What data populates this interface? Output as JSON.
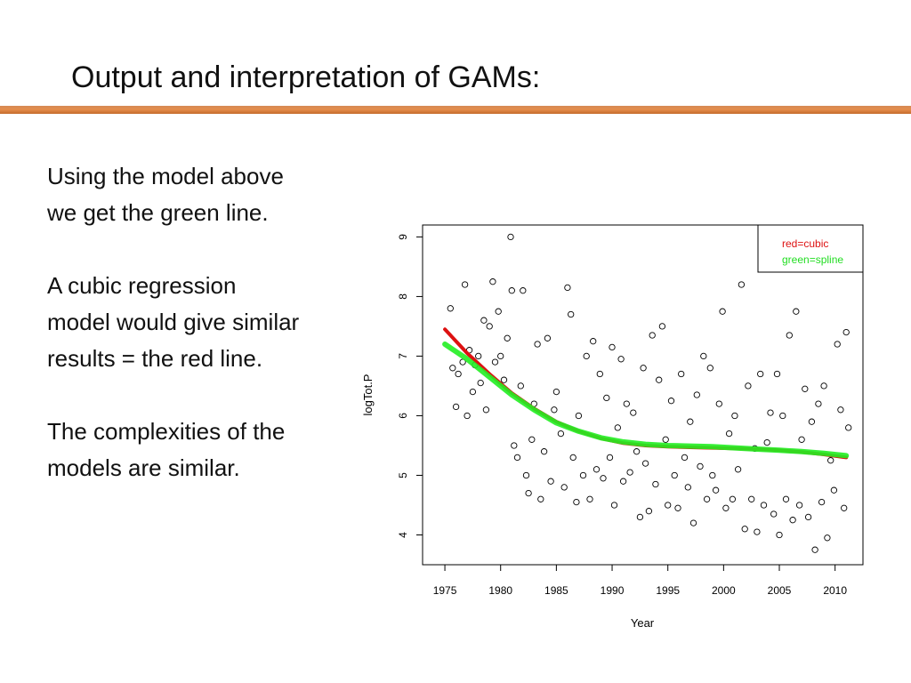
{
  "slide": {
    "title": "Output and interpretation of GAMs:",
    "paragraphs": [
      "Using the model above we get the green line.",
      "A cubic regression model would give similar results = the red line.",
      "The complexities of the models are similar."
    ]
  },
  "colors": {
    "accent_rule": "#e58d4c",
    "cubic": "#dd1111",
    "spline": "#22ee22"
  },
  "chart_data": {
    "type": "scatter",
    "xlabel": "Year",
    "ylabel": "logTot.P",
    "xlim": [
      1973,
      2012.5
    ],
    "ylim": [
      3.5,
      9.2
    ],
    "xticks": [
      1975,
      1980,
      1985,
      1990,
      1995,
      2000,
      2005,
      2010
    ],
    "yticks": [
      4,
      5,
      6,
      7,
      8,
      9
    ],
    "grid": false,
    "legend": {
      "position": "top-right",
      "entries": [
        {
          "label": "red=cubic",
          "color": "#dd1111"
        },
        {
          "label": "green=spline",
          "color": "#22ee22"
        }
      ]
    },
    "points": [
      [
        1975.5,
        7.8
      ],
      [
        1975.7,
        6.8
      ],
      [
        1976.0,
        6.15
      ],
      [
        1976.2,
        6.7
      ],
      [
        1976.6,
        6.9
      ],
      [
        1976.8,
        8.2
      ],
      [
        1977.0,
        6.0
      ],
      [
        1977.2,
        7.1
      ],
      [
        1977.5,
        6.4
      ],
      [
        1977.7,
        6.85
      ],
      [
        1978.0,
        7.0
      ],
      [
        1978.2,
        6.55
      ],
      [
        1978.5,
        7.6
      ],
      [
        1978.7,
        6.1
      ],
      [
        1979.0,
        7.5
      ],
      [
        1979.3,
        8.25
      ],
      [
        1979.5,
        6.9
      ],
      [
        1979.8,
        7.75
      ],
      [
        1980.0,
        7.0
      ],
      [
        1980.3,
        6.6
      ],
      [
        1980.6,
        7.3
      ],
      [
        1980.9,
        9.0
      ],
      [
        1981.0,
        8.1
      ],
      [
        1981.2,
        5.5
      ],
      [
        1981.5,
        5.3
      ],
      [
        1981.8,
        6.5
      ],
      [
        1982.0,
        8.1
      ],
      [
        1982.3,
        5.0
      ],
      [
        1982.5,
        4.7
      ],
      [
        1982.8,
        5.6
      ],
      [
        1983.0,
        6.2
      ],
      [
        1983.3,
        7.2
      ],
      [
        1983.6,
        4.6
      ],
      [
        1983.9,
        5.4
      ],
      [
        1984.2,
        7.3
      ],
      [
        1984.5,
        4.9
      ],
      [
        1984.8,
        6.1
      ],
      [
        1985.0,
        6.4
      ],
      [
        1985.4,
        5.7
      ],
      [
        1985.7,
        4.8
      ],
      [
        1986.0,
        8.15
      ],
      [
        1986.3,
        7.7
      ],
      [
        1986.5,
        5.3
      ],
      [
        1986.8,
        4.55
      ],
      [
        1987.0,
        6.0
      ],
      [
        1987.4,
        5.0
      ],
      [
        1987.7,
        7.0
      ],
      [
        1988.0,
        4.6
      ],
      [
        1988.3,
        7.25
      ],
      [
        1988.6,
        5.1
      ],
      [
        1988.9,
        6.7
      ],
      [
        1989.2,
        4.95
      ],
      [
        1989.5,
        6.3
      ],
      [
        1989.8,
        5.3
      ],
      [
        1990.0,
        7.15
      ],
      [
        1990.2,
        4.5
      ],
      [
        1990.5,
        5.8
      ],
      [
        1990.8,
        6.95
      ],
      [
        1991.0,
        4.9
      ],
      [
        1991.3,
        6.2
      ],
      [
        1991.6,
        5.05
      ],
      [
        1991.9,
        6.05
      ],
      [
        1992.2,
        5.4
      ],
      [
        1992.5,
        4.3
      ],
      [
        1992.8,
        6.8
      ],
      [
        1993.0,
        5.2
      ],
      [
        1993.3,
        4.4
      ],
      [
        1993.6,
        7.35
      ],
      [
        1993.9,
        4.85
      ],
      [
        1994.2,
        6.6
      ],
      [
        1994.5,
        7.5
      ],
      [
        1994.8,
        5.6
      ],
      [
        1995.0,
        4.5
      ],
      [
        1995.3,
        6.25
      ],
      [
        1995.6,
        5.0
      ],
      [
        1995.9,
        4.45
      ],
      [
        1996.2,
        6.7
      ],
      [
        1996.5,
        5.3
      ],
      [
        1996.8,
        4.8
      ],
      [
        1997.0,
        5.9
      ],
      [
        1997.3,
        4.2
      ],
      [
        1997.6,
        6.35
      ],
      [
        1997.9,
        5.15
      ],
      [
        1998.2,
        7.0
      ],
      [
        1998.5,
        4.6
      ],
      [
        1998.8,
        6.8
      ],
      [
        1999.0,
        5.0
      ],
      [
        1999.3,
        4.75
      ],
      [
        1999.6,
        6.2
      ],
      [
        1999.9,
        7.75
      ],
      [
        2000.2,
        4.45
      ],
      [
        2000.5,
        5.7
      ],
      [
        2000.8,
        4.6
      ],
      [
        2001.0,
        6.0
      ],
      [
        2001.3,
        5.1
      ],
      [
        2001.6,
        8.2
      ],
      [
        2001.9,
        4.1
      ],
      [
        2002.2,
        6.5
      ],
      [
        2002.5,
        4.6
      ],
      [
        2002.8,
        5.45
      ],
      [
        2003.0,
        4.05
      ],
      [
        2003.3,
        6.7
      ],
      [
        2003.6,
        4.5
      ],
      [
        2003.9,
        5.55
      ],
      [
        2004.2,
        6.05
      ],
      [
        2004.5,
        4.35
      ],
      [
        2004.8,
        6.7
      ],
      [
        2005.0,
        4.0
      ],
      [
        2005.3,
        6.0
      ],
      [
        2005.6,
        4.6
      ],
      [
        2005.9,
        7.35
      ],
      [
        2006.2,
        4.25
      ],
      [
        2006.5,
        7.75
      ],
      [
        2006.8,
        4.5
      ],
      [
        2007.0,
        5.6
      ],
      [
        2007.3,
        6.45
      ],
      [
        2007.6,
        4.3
      ],
      [
        2007.9,
        5.9
      ],
      [
        2008.2,
        3.75
      ],
      [
        2008.5,
        6.2
      ],
      [
        2008.8,
        4.55
      ],
      [
        2009.0,
        6.5
      ],
      [
        2009.3,
        3.95
      ],
      [
        2009.6,
        5.25
      ],
      [
        2009.9,
        4.75
      ],
      [
        2010.2,
        7.2
      ],
      [
        2010.5,
        6.1
      ],
      [
        2010.8,
        4.45
      ],
      [
        2011.0,
        7.4
      ],
      [
        2011.2,
        5.8
      ]
    ],
    "series": [
      {
        "name": "red=cubic",
        "color": "#dd1111",
        "x": [
          1975,
          1977,
          1979,
          1981,
          1983,
          1985,
          1987,
          1989,
          1991,
          1993,
          1995,
          1997,
          1999,
          2001,
          2003,
          2005,
          2007,
          2009,
          2011
        ],
        "y": [
          7.45,
          7.05,
          6.7,
          6.38,
          6.12,
          5.9,
          5.74,
          5.62,
          5.54,
          5.5,
          5.48,
          5.47,
          5.46,
          5.45,
          5.44,
          5.42,
          5.39,
          5.35,
          5.3
        ]
      },
      {
        "name": "green=spline",
        "color": "#22ee22",
        "x": [
          1975,
          1977,
          1979,
          1981,
          1983,
          1985,
          1987,
          1989,
          1991,
          1993,
          1995,
          1997,
          1999,
          2001,
          2003,
          2005,
          2007,
          2009,
          2011
        ],
        "y": [
          7.2,
          6.95,
          6.65,
          6.35,
          6.1,
          5.88,
          5.74,
          5.63,
          5.56,
          5.52,
          5.5,
          5.49,
          5.48,
          5.46,
          5.44,
          5.42,
          5.4,
          5.37,
          5.33
        ]
      }
    ]
  }
}
